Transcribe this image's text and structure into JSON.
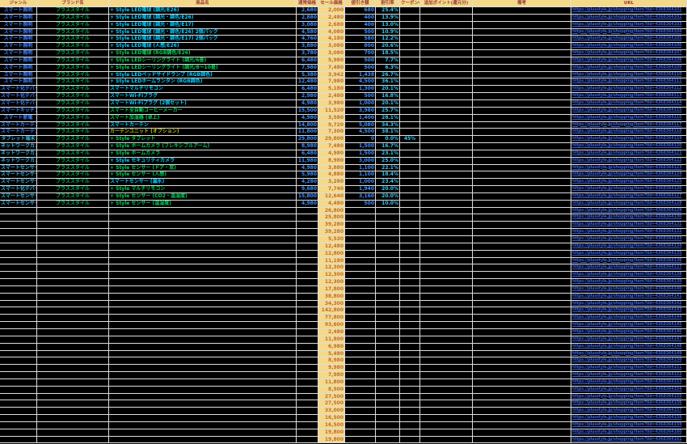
{
  "palette": {
    "background": "#000000",
    "grid_line": "#DDDDDD",
    "header_bg": "#F5D98B",
    "header_text": "#943634",
    "sale_bg": "#F5D98B",
    "sale_text": "#BE6E28",
    "regular_price_text": "#3E8EFF",
    "discount_text": "#3E8EFF",
    "rate_text": "#38C6F0",
    "coupon_text": "#38C6F0",
    "brand_text": "#00B050",
    "url_text": "#3B5FD9",
    "name_cyan": "#00CCFF",
    "name_green": "#00CC55",
    "name_olive": "#BDBD00",
    "genre_blue": "#3E7FFF",
    "genre_lightblue": "#35B5E5"
  },
  "headers": [
    "ジャンル",
    "ブランド名",
    "商品名",
    "通常価格",
    "セール価格",
    "値引き額",
    "割引率",
    "クーポンの額",
    "追加ポイント(還元分)",
    "備考",
    "URL"
  ],
  "products": [
    {
      "genre": "スマート照明",
      "gc": "genre_blue",
      "brand": "プラススタイル",
      "name": "+ Style LED電球 (調光/E26)",
      "nc": "name_cyan",
      "regular": "2,680",
      "sale": "2,000",
      "discount": "680",
      "rate": "25.4%",
      "coupon": "",
      "points": "",
      "note": "",
      "url": "https://plusstyle.jp/shopping/item?tid=4368364101"
    },
    {
      "genre": "スマート照明",
      "gc": "genre_blue",
      "brand": "プラススタイル",
      "name": "+ Style LED電球 (調光・調色/E26)",
      "nc": "name_cyan",
      "regular": "2,880",
      "sale": "2,480",
      "discount": "400",
      "rate": "13.9%",
      "coupon": "",
      "points": "",
      "note": "",
      "url": "https://plusstyle.jp/shopping/item?tid=4368364102"
    },
    {
      "genre": "スマート照明",
      "gc": "genre_blue",
      "brand": "プラススタイル",
      "name": "+ Style LED電球 (調光・調色/E17)",
      "nc": "name_cyan",
      "regular": "3,080",
      "sale": "2,680",
      "discount": "400",
      "rate": "13.0%",
      "coupon": "",
      "points": "",
      "note": "",
      "url": "https://plusstyle.jp/shopping/item?tid=4368364103"
    },
    {
      "genre": "スマート照明",
      "gc": "genre_blue",
      "brand": "プラススタイル",
      "name": "+ Style LED電球 (調光・調色/E26) 2個パック",
      "nc": "name_cyan",
      "regular": "4,580",
      "sale": "4,080",
      "discount": "500",
      "rate": "10.9%",
      "coupon": "",
      "points": "",
      "note": "",
      "url": "https://plusstyle.jp/shopping/item?tid=4368364104"
    },
    {
      "genre": "スマート照明",
      "gc": "genre_blue",
      "brand": "プラススタイル",
      "name": "+ Style LED電球 (調光・調色/E17) 2個パック",
      "nc": "name_cyan",
      "regular": "4,760",
      "sale": "4,180",
      "discount": "580",
      "rate": "12.2%",
      "coupon": "",
      "points": "",
      "note": "",
      "url": "https://plusstyle.jp/shopping/item?tid=4368364105"
    },
    {
      "genre": "スマート照明",
      "gc": "genre_blue",
      "brand": "プラススタイル",
      "name": "+ Style LED電球 (人感/E26)",
      "nc": "name_cyan",
      "regular": "3,880",
      "sale": "3,080",
      "discount": "800",
      "rate": "20.6%",
      "coupon": "",
      "points": "",
      "note": "",
      "url": "https://plusstyle.jp/shopping/item?tid=4368364106"
    },
    {
      "genre": "スマート照明",
      "gc": "genre_blue",
      "brand": "プラススタイル",
      "name": "+ Style LED電球 (RGB調色/E26)",
      "nc": "name_green",
      "regular": "3,780",
      "sale": "3,080",
      "discount": "700",
      "rate": "18.5%",
      "coupon": "",
      "points": "",
      "note": "",
      "url": "https://plusstyle.jp/shopping/item?tid=4368364107"
    },
    {
      "genre": "スマート照明",
      "gc": "genre_blue",
      "brand": "プラススタイル",
      "name": "+ Style LEDシーリングライト (調光/6畳)",
      "nc": "name_green",
      "regular": "6,480",
      "sale": "5,980",
      "discount": "500",
      "rate": "7.7%",
      "coupon": "",
      "points": "",
      "note": "",
      "url": "https://plusstyle.jp/shopping/item?tid=4368364108"
    },
    {
      "genre": "スマート照明",
      "gc": "genre_blue",
      "brand": "プラススタイル",
      "name": "+ Style LEDシーリングライト (調光/8〜10畳)",
      "nc": "name_green",
      "regular": "7,980",
      "sale": "7,480",
      "discount": "500",
      "rate": "6.3%",
      "coupon": "",
      "points": "",
      "note": "",
      "url": "https://plusstyle.jp/shopping/item?tid=4368364109"
    },
    {
      "genre": "スマート照明",
      "gc": "genre_blue",
      "brand": "プラススタイル",
      "name": "+ Style LEDベッドサイドランプ (RGB調色)",
      "nc": "name_cyan",
      "regular": "5,380",
      "sale": "3,942",
      "discount": "1,438",
      "rate": "26.7%",
      "coupon": "",
      "points": "",
      "note": "",
      "url": "https://plusstyle.jp/shopping/item?tid=4368364110"
    },
    {
      "genre": "スマート照明",
      "gc": "genre_blue",
      "brand": "プラススタイル",
      "name": "+ Style LEDホームランタン (RGB調色)",
      "nc": "name_cyan",
      "regular": "12,480",
      "sale": "7,980",
      "discount": "4,500",
      "rate": "36.1%",
      "coupon": "",
      "points": "",
      "note": "",
      "url": "https://plusstyle.jp/shopping/item?tid=4368364111"
    },
    {
      "genre": "スマート化デバイス",
      "gc": "genre_blue",
      "brand": "プラススタイル",
      "name": "スマートマルチリモコン",
      "nc": "name_cyan",
      "regular": "6,480",
      "sale": "5,180",
      "discount": "1,300",
      "rate": "20.1%",
      "coupon": "",
      "points": "",
      "note": "",
      "url": "https://plusstyle.jp/shopping/item?tid=4368364112"
    },
    {
      "genre": "スマート化デバイス",
      "gc": "genre_blue",
      "brand": "プラススタイル",
      "name": "スマートWi-Fiプラグ",
      "nc": "name_cyan",
      "regular": "2,980",
      "sale": "2,480",
      "discount": "500",
      "rate": "16.8%",
      "coupon": "",
      "points": "",
      "note": "",
      "url": "https://plusstyle.jp/shopping/item?tid=4368364113"
    },
    {
      "genre": "スマート化デバイス",
      "gc": "genre_blue",
      "brand": "プラススタイル",
      "name": "スマートWi-Fiプラグ (2個セット)",
      "nc": "name_cyan",
      "regular": "4,980",
      "sale": "3,980",
      "discount": "1,000",
      "rate": "20.1%",
      "coupon": "",
      "points": "",
      "note": "",
      "url": "https://plusstyle.jp/shopping/item?tid=4368364114"
    },
    {
      "genre": "スマートキッチン",
      "gc": "genre_blue",
      "brand": "プラススタイル",
      "name": "スマート全自動コーヒーメーカー",
      "nc": "name_green",
      "regular": "15,500",
      "sale": "11,520",
      "discount": "3,980",
      "rate": "25.7%",
      "coupon": "",
      "points": "",
      "note": "",
      "url": "https://plusstyle.jp/shopping/item?tid=4368364115"
    },
    {
      "genre": "スマート家電",
      "gc": "genre_blue",
      "brand": "プラススタイル",
      "name": "スマート加湿器 (卓上)",
      "nc": "name_green",
      "regular": "4,980",
      "sale": "3,580",
      "discount": "1,400",
      "rate": "28.1%",
      "coupon": "",
      "points": "",
      "note": "",
      "url": "https://plusstyle.jp/shopping/item?tid=4368364116"
    },
    {
      "genre": "スマートカーテン",
      "gc": "genre_blue",
      "brand": "プラススタイル",
      "name": "スマートカーテン",
      "nc": "name_cyan",
      "regular": "14,800",
      "sale": "9,720",
      "discount": "5,080",
      "rate": "34.3%",
      "coupon": "",
      "points": "",
      "note": "",
      "url": "https://plusstyle.jp/shopping/item?tid=4368364117"
    },
    {
      "genre": "スマートカーテン",
      "gc": "genre_blue",
      "brand": "プラススタイル",
      "name": "カーテンユニット (オプション)",
      "nc": "name_olive",
      "regular": "11,800",
      "sale": "7,300",
      "discount": "4,500",
      "rate": "38.1%",
      "coupon": "",
      "points": "",
      "note": "",
      "url": "https://plusstyle.jp/shopping/item?tid=4368364118"
    },
    {
      "genre": "タブレット端末",
      "gc": "genre_lightblue",
      "brand": "プラススタイル",
      "name": "+ Style タブレット",
      "nc": "name_green",
      "regular": "29,800",
      "sale": "29,800",
      "discount": "0",
      "rate": "0.0%",
      "coupon": "45%",
      "points": "",
      "note": "",
      "url": "https://plusstyle.jp/shopping/item?tid=4368364119"
    },
    {
      "genre": "ネットワークカメラ",
      "gc": "genre_lightblue",
      "brand": "プラススタイル",
      "name": "+ Style ホームカメラ (フレキシブルアーム)",
      "nc": "name_green",
      "regular": "8,980",
      "sale": "7,480",
      "discount": "1,500",
      "rate": "16.7%",
      "coupon": "",
      "points": "",
      "note": "",
      "url": "https://plusstyle.jp/shopping/item?tid=4368364120"
    },
    {
      "genre": "ネットワークカメラ",
      "gc": "genre_lightblue",
      "brand": "プラススタイル",
      "name": "+ Style ホームカメラ",
      "nc": "name_green",
      "regular": "6,480",
      "sale": "4,980",
      "discount": "1,500",
      "rate": "23.1%",
      "coupon": "",
      "points": "",
      "note": "",
      "url": "https://plusstyle.jp/shopping/item?tid=4368364121"
    },
    {
      "genre": "ネットワークカメラ",
      "gc": "genre_lightblue",
      "brand": "プラススタイル",
      "name": "+ Style セキュリティカメラ",
      "nc": "name_cyan",
      "regular": "11,980",
      "sale": "8,980",
      "discount": "3,000",
      "rate": "25.0%",
      "coupon": "",
      "points": "",
      "note": "",
      "url": "https://plusstyle.jp/shopping/item?tid=4368364122"
    },
    {
      "genre": "スマートセンサー",
      "gc": "genre_lightblue",
      "brand": "プラススタイル",
      "name": "+ Style センサー (ドア・窓)",
      "nc": "name_green",
      "regular": "4,980",
      "sale": "3,880",
      "discount": "1,100",
      "rate": "22.1%",
      "coupon": "",
      "points": "",
      "note": "",
      "url": "https://plusstyle.jp/shopping/item?tid=4368364123"
    },
    {
      "genre": "スマートセンサー",
      "gc": "genre_lightblue",
      "brand": "プラススタイル",
      "name": "+ Style センサー (人感)",
      "nc": "name_green",
      "regular": "5,980",
      "sale": "4,880",
      "discount": "1,100",
      "rate": "18.4%",
      "coupon": "",
      "points": "",
      "note": "",
      "url": "https://plusstyle.jp/shopping/item?tid=4368364124"
    },
    {
      "genre": "スマートセンサー",
      "gc": "genre_lightblue",
      "brand": "プラススタイル",
      "name": "スマートセンサー (漏水)",
      "nc": "name_cyan",
      "regular": "4,280",
      "sale": "3,280",
      "discount": "1,000",
      "rate": "23.4%",
      "coupon": "",
      "points": "",
      "note": "",
      "url": "https://plusstyle.jp/shopping/item?tid=4368364125"
    },
    {
      "genre": "スマート化デバイス",
      "gc": "genre_lightblue",
      "brand": "プラススタイル",
      "name": "+ Style マルチリモコン",
      "nc": "name_green",
      "regular": "9,680",
      "sale": "7,740",
      "discount": "1,940",
      "rate": "20.0%",
      "coupon": "",
      "points": "",
      "note": "",
      "url": "https://plusstyle.jp/shopping/item?tid=4368364126"
    },
    {
      "genre": "スマートセンサー",
      "gc": "genre_lightblue",
      "brand": "プラススタイル",
      "name": "+ Style センサー (CO2・温湿度)",
      "nc": "name_green",
      "regular": "15,800",
      "sale": "12,640",
      "discount": "3,160",
      "rate": "20.0%",
      "coupon": "",
      "points": "",
      "note": "",
      "url": "https://plusstyle.jp/shopping/item?tid=4368364127"
    },
    {
      "genre": "スマートセンサー",
      "gc": "genre_lightblue",
      "brand": "プラススタイル",
      "name": "+ Style センサー (温湿度)",
      "nc": "name_green",
      "regular": "4,980",
      "sale": "4,480",
      "discount": "500",
      "rate": "10.0%",
      "coupon": "",
      "points": "",
      "note": "",
      "url": "https://plusstyle.jp/shopping/item?tid=4368364128"
    }
  ],
  "extra_rows": [
    {
      "sale": "26,800",
      "url": "https://plusstyle.jp/shopping/item?tid=4368364129"
    },
    {
      "sale": "25,800",
      "url": "https://plusstyle.jp/shopping/item?tid=4368364130"
    },
    {
      "sale": "39,280",
      "url": "https://plusstyle.jp/shopping/item?tid=4368364131"
    },
    {
      "sale": "39,280",
      "url": "https://plusstyle.jp/shopping/item?tid=4368364132"
    },
    {
      "sale": "5,530",
      "url": "https://plusstyle.jp/shopping/item?tid=4368364133"
    },
    {
      "sale": "12,480",
      "url": "https://plusstyle.jp/shopping/item?tid=4368364134"
    },
    {
      "sale": "12,800",
      "url": "https://plusstyle.jp/shopping/item?tid=4368364135"
    },
    {
      "sale": "11,180",
      "url": "https://plusstyle.jp/shopping/item?tid=4368364136"
    },
    {
      "sale": "12,300",
      "url": "https://plusstyle.jp/shopping/item?tid=4368364137"
    },
    {
      "sale": "12,300",
      "url": "https://plusstyle.jp/shopping/item?tid=4368364138"
    },
    {
      "sale": "12,300",
      "url": "https://plusstyle.jp/shopping/item?tid=4368364139"
    },
    {
      "sale": "17,800",
      "url": "https://plusstyle.jp/shopping/item?tid=4368364140"
    },
    {
      "sale": "38,800",
      "url": "https://plusstyle.jp/shopping/item?tid=4368364141"
    },
    {
      "sale": "34,300",
      "url": "https://plusstyle.jp/shopping/item?tid=4368364142"
    },
    {
      "sale": "142,800",
      "url": "https://plusstyle.jp/shopping/item?tid=4368364143"
    },
    {
      "sale": "77,800",
      "url": "https://plusstyle.jp/shopping/item?tid=4368364144"
    },
    {
      "sale": "93,600",
      "url": "https://plusstyle.jp/shopping/item?tid=4368364145"
    },
    {
      "sale": "2,480",
      "url": "https://plusstyle.jp/shopping/item?tid=4368364146"
    },
    {
      "sale": "11,800",
      "url": "https://plusstyle.jp/shopping/item?tid=4368364147"
    },
    {
      "sale": "6,980",
      "url": "https://plusstyle.jp/shopping/item?tid=4368364148"
    },
    {
      "sale": "5,480",
      "url": "https://plusstyle.jp/shopping/item?tid=4368364149"
    },
    {
      "sale": "8,980",
      "url": "https://plusstyle.jp/shopping/item?tid=4368364150"
    },
    {
      "sale": "9,980",
      "url": "https://plusstyle.jp/shopping/item?tid=4368364151"
    },
    {
      "sale": "7,980",
      "url": "https://plusstyle.jp/shopping/item?tid=4368364152"
    },
    {
      "sale": "11,800",
      "url": "https://plusstyle.jp/shopping/item?tid=4368364153"
    },
    {
      "sale": "8,500",
      "url": "https://plusstyle.jp/shopping/item?tid=4368364154"
    },
    {
      "sale": "27,500",
      "url": "https://plusstyle.jp/shopping/item?tid=4368364155"
    },
    {
      "sale": "27,500",
      "url": "https://plusstyle.jp/shopping/item?tid=4368364156"
    },
    {
      "sale": "33,000",
      "url": "https://plusstyle.jp/shopping/item?tid=4368364157"
    },
    {
      "sale": "16,500",
      "url": "https://plusstyle.jp/shopping/item?tid=4368364158"
    },
    {
      "sale": "16,500",
      "url": "https://plusstyle.jp/shopping/item?tid=4368364159"
    },
    {
      "sale": "19,800",
      "url": "https://plusstyle.jp/shopping/item?tid=4368364160"
    },
    {
      "sale": "19,800",
      "url": "https://plusstyle.jp/shopping/item?tid=4368364161"
    }
  ]
}
